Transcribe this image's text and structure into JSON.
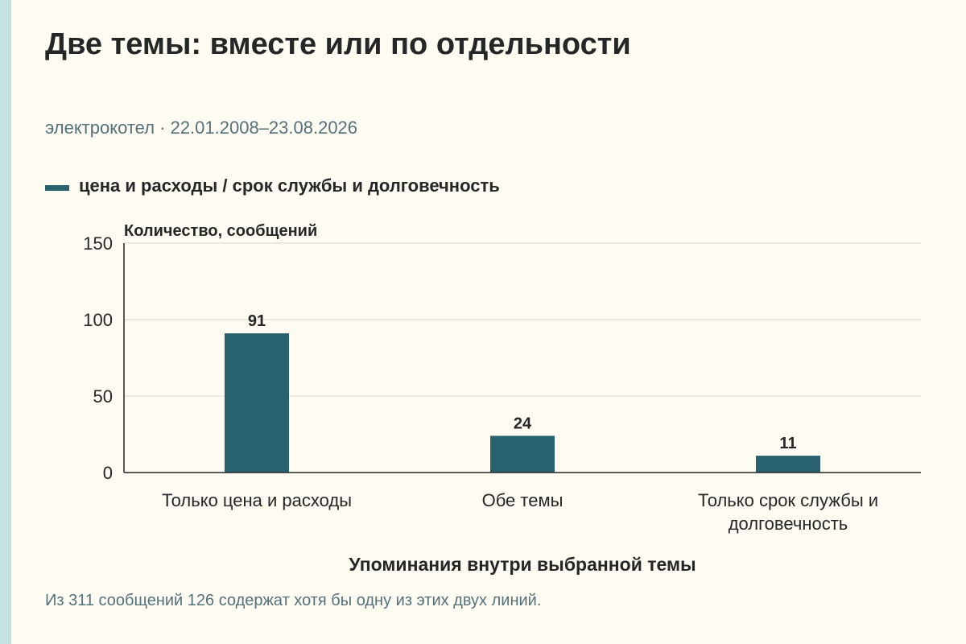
{
  "header": {
    "title": "Две темы: вместе или по отдельности",
    "subtitle": "электрокотел · 22.01.2008–23.08.2026"
  },
  "legend": {
    "label": "цена и расходы / срок службы и долговечность"
  },
  "colors": {
    "bar": "#27626e",
    "background": "#fdfbf2",
    "accent_strip": "#c4e1e4",
    "gridline": "#d9d6cc",
    "axis": "#262626"
  },
  "chart_data": {
    "type": "bar",
    "categories": [
      [
        "Только цена и расходы"
      ],
      [
        "Обе темы"
      ],
      [
        "Только срок службы и",
        "долговечность"
      ]
    ],
    "series": [
      {
        "name": "цена и расходы / срок службы и долговечность",
        "values": [
          91,
          24,
          11
        ]
      }
    ],
    "ylabel": "Количество, сообщений",
    "xlabel": "Упоминания внутри выбранной темы",
    "ylim": [
      0,
      150
    ],
    "yticks": [
      0,
      50,
      100,
      150
    ],
    "grid": true,
    "data_labels": true,
    "legend_position": "top-left"
  },
  "footnote": "Из 311 сообщений 126 содержат хотя бы одну из этих двух линий."
}
